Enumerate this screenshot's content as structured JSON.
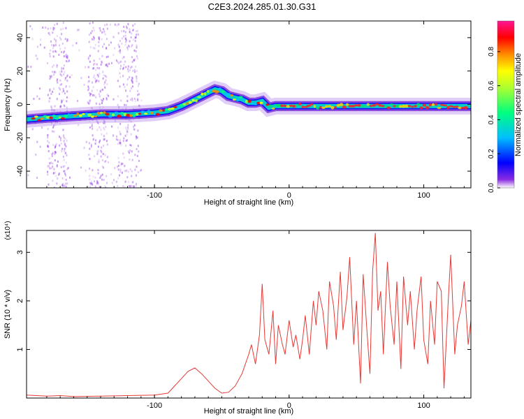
{
  "title": "C2E3.2024.285.01.30.G31",
  "colors": {
    "snr_line": "#e53935",
    "axis": "#000000"
  },
  "chart_data": [
    {
      "type": "heatmap",
      "xlabel": "Height of straight line (km)",
      "ylabel": "Frequency (Hz)",
      "xlim": [
        -195,
        135
      ],
      "ylim": [
        -50,
        50
      ],
      "x_ticks": [
        -100,
        0,
        100
      ],
      "y_ticks": [
        40,
        20,
        0,
        -20,
        -40
      ],
      "x_tick_labels": [
        "-100",
        "0",
        "100"
      ],
      "y_tick_labels": [
        "40",
        "20",
        "0",
        "-20",
        "-40"
      ],
      "colorbar": {
        "label": "Normalized spectral amplitude",
        "range": [
          0,
          0.98
        ],
        "ticks": [
          0.0,
          0.2,
          0.4,
          0.6,
          0.8
        ],
        "tick_labels": [
          "0.0",
          "0.2",
          "0.4",
          "0.6",
          "0.8"
        ]
      },
      "ridge": {
        "x": [
          -195,
          -180,
          -160,
          -140,
          -120,
          -100,
          -90,
          -80,
          -70,
          -60,
          -55,
          -50,
          -45,
          -40,
          -35,
          -30,
          -25,
          -20,
          -15,
          -10,
          -5,
          0,
          20,
          40,
          60,
          80,
          100,
          120,
          135
        ],
        "freq": [
          -9,
          -8,
          -7,
          -6,
          -6,
          -5,
          -4,
          -1,
          3,
          7,
          9,
          8,
          5,
          4,
          3,
          1,
          1,
          2,
          -2,
          -1,
          -1,
          -1,
          -1,
          -1,
          -1,
          -1,
          -1,
          -1,
          -1
        ]
      }
    },
    {
      "type": "line",
      "xlabel": "Height of straight line (km)",
      "ylabel": "SNR (10 * v/v)",
      "y_multiplier": "(x10⁴)",
      "xlim": [
        -195,
        135
      ],
      "ylim": [
        0,
        3.45
      ],
      "x_ticks": [
        -100,
        0,
        100
      ],
      "y_ticks": [
        1,
        2,
        3
      ],
      "x_tick_labels": [
        "-100",
        "0",
        "100"
      ],
      "y_tick_labels": [
        "1",
        "2",
        "3"
      ],
      "series": [
        {
          "x": [
            -195,
            -180,
            -170,
            -160,
            -140,
            -120,
            -100,
            -90,
            -85,
            -80,
            -75,
            -70,
            -65,
            -60,
            -55,
            -50,
            -45,
            -40,
            -35,
            -30,
            -28,
            -25,
            -22,
            -20,
            -18,
            -15,
            -12,
            -10,
            -8,
            -5,
            -3,
            0,
            3,
            5,
            8,
            10,
            12,
            15,
            18,
            20,
            22,
            25,
            28,
            30,
            33,
            35,
            38,
            40,
            43,
            45,
            48,
            50,
            53,
            55,
            58,
            60,
            62,
            64,
            66,
            68,
            70,
            73,
            75,
            78,
            80,
            83,
            85,
            88,
            90,
            93,
            95,
            98,
            100,
            103,
            105,
            108,
            110,
            113,
            115,
            118,
            120,
            123,
            125,
            128,
            130,
            133,
            135
          ],
          "y": [
            0.06,
            0.04,
            0.05,
            0.03,
            0.04,
            0.05,
            0.06,
            0.1,
            0.25,
            0.4,
            0.55,
            0.62,
            0.5,
            0.35,
            0.2,
            0.1,
            0.12,
            0.25,
            0.5,
            0.9,
            1.1,
            0.7,
            1.3,
            2.35,
            1.2,
            0.9,
            1.8,
            0.7,
            1.5,
            1.1,
            0.9,
            1.6,
            1.05,
            1.3,
            0.8,
            1.2,
            1.7,
            0.9,
            2.0,
            1.5,
            2.2,
            1.8,
            1.0,
            2.4,
            1.9,
            1.2,
            2.6,
            1.4,
            2.1,
            2.9,
            1.1,
            2.0,
            0.3,
            2.55,
            1.3,
            0.5,
            2.6,
            3.4,
            1.8,
            2.2,
            0.9,
            2.8,
            1.9,
            1.1,
            2.4,
            0.6,
            2.5,
            1.5,
            2.2,
            1.0,
            1.8,
            2.5,
            1.2,
            0.7,
            2.0,
            1.1,
            2.4,
            2.2,
            0.2,
            1.9,
            2.95,
            0.9,
            1.5,
            1.9,
            2.4,
            1.1,
            1.6
          ]
        }
      ]
    }
  ]
}
